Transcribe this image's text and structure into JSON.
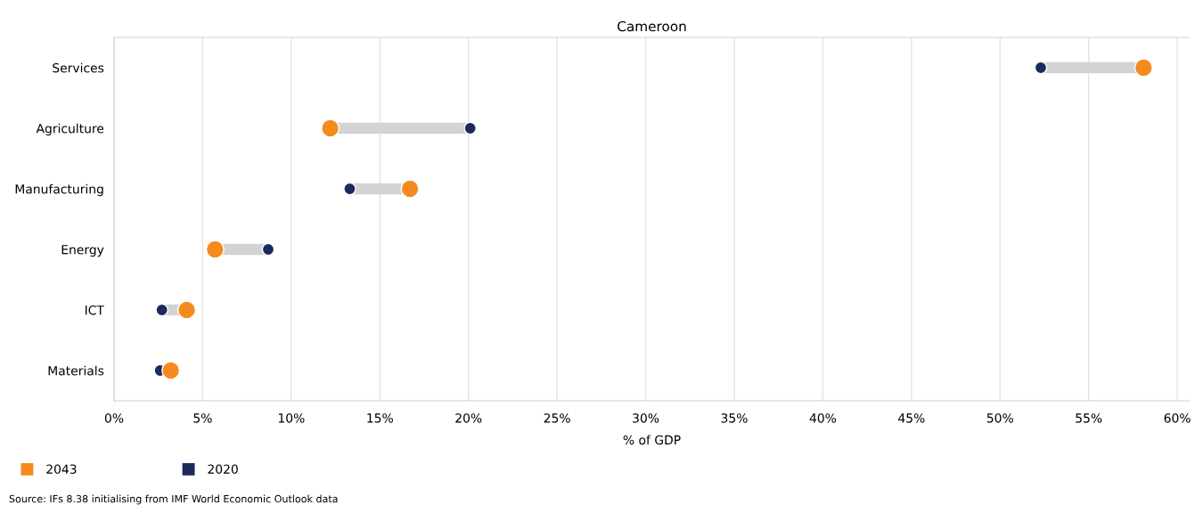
{
  "chart_data": {
    "type": "scatter",
    "title": "Cameroon",
    "xlabel": "% of GDP",
    "categories": [
      "Services",
      "Agriculture",
      "Manufacturing",
      "Energy",
      "ICT",
      "Materials"
    ],
    "orientation": "horizontal",
    "series": [
      {
        "name": "2043",
        "color": "#f58a1f",
        "values": [
          58.1,
          12.2,
          16.7,
          5.7,
          4.1,
          3.2
        ]
      },
      {
        "name": "2020",
        "color": "#1b2a5c",
        "values": [
          52.3,
          20.1,
          13.3,
          8.7,
          2.7,
          2.6
        ]
      }
    ],
    "xlim": [
      0,
      60.7
    ],
    "xticks": [
      {
        "value": 0,
        "label": "0%"
      },
      {
        "value": 5,
        "label": "5%"
      },
      {
        "value": 10,
        "label": "10%"
      },
      {
        "value": 15,
        "label": "15%"
      },
      {
        "value": 20,
        "label": "20%"
      },
      {
        "value": 25,
        "label": "25%"
      },
      {
        "value": 30,
        "label": "30%"
      },
      {
        "value": 35,
        "label": "35%"
      },
      {
        "value": 40,
        "label": "40%"
      },
      {
        "value": 45,
        "label": "45%"
      },
      {
        "value": 50,
        "label": "50%"
      },
      {
        "value": 55,
        "label": "55%"
      },
      {
        "value": 60,
        "label": "60%"
      }
    ],
    "grid": "x",
    "legend": "bottom left",
    "marker": "circle",
    "annotations": [
      "Source: IFs 8.38 initialising from IMF World Economic Outlook data"
    ]
  }
}
